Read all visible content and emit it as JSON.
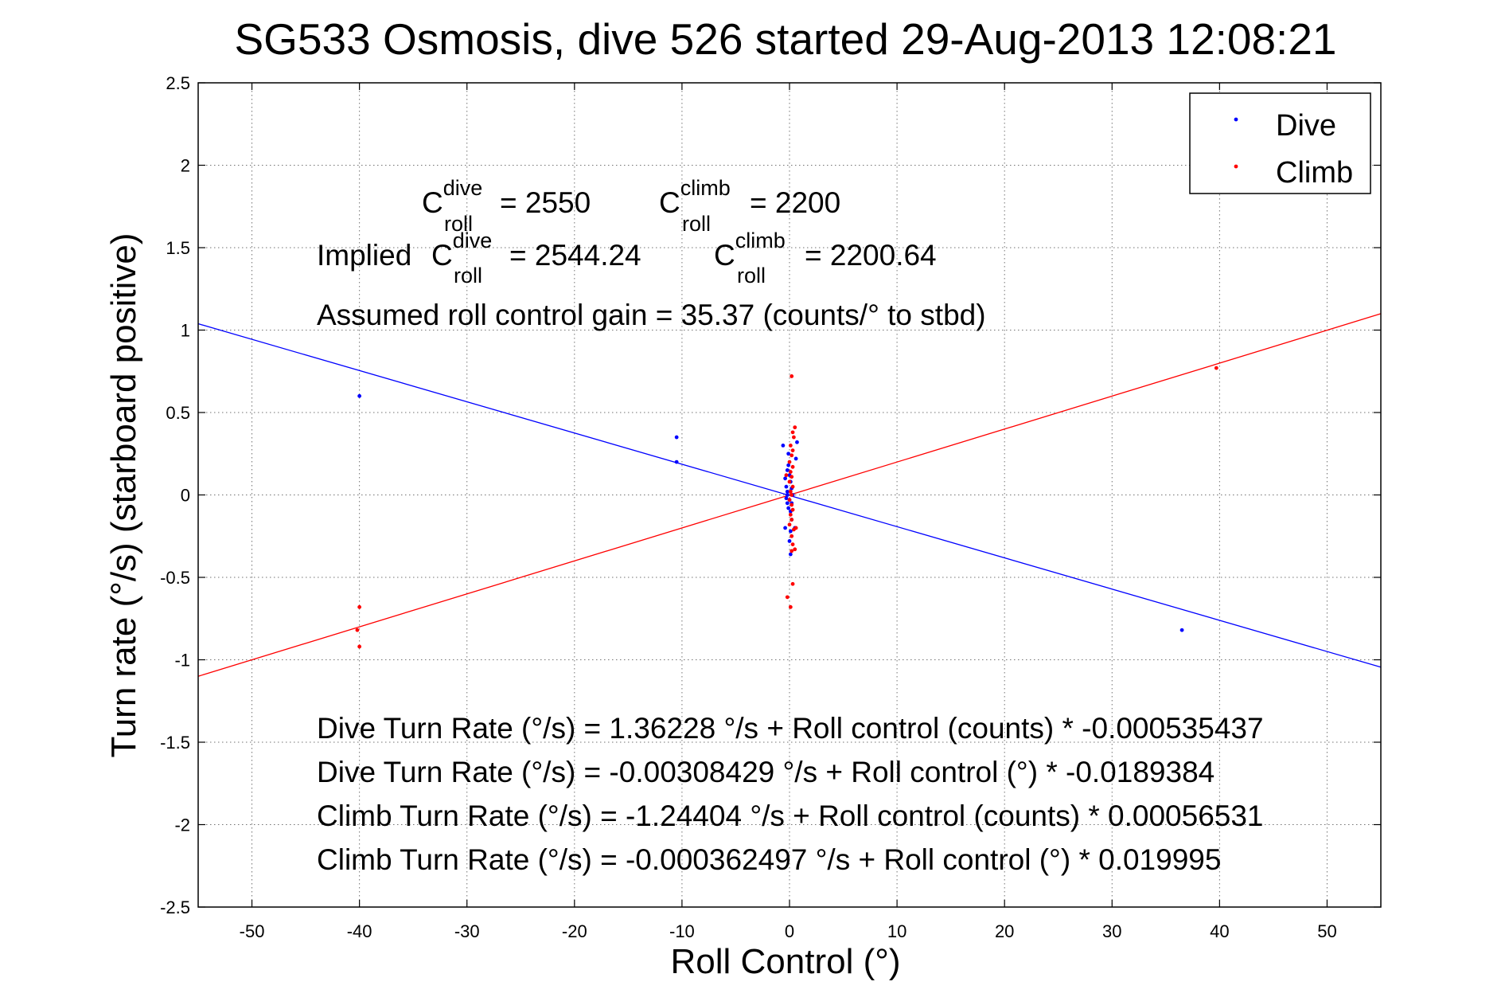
{
  "chart_data": {
    "type": "scatter",
    "title": "SG533 Osmosis, dive 526 started 29-Aug-2013 12:08:21",
    "xlabel": "Roll Control (°)",
    "ylabel": "Turn rate (°/s)  (starboard positive)",
    "xlim": [
      -55,
      55
    ],
    "ylim": [
      -2.5,
      2.5
    ],
    "xticks": [
      "-50",
      "-40",
      "-30",
      "-20",
      "-10",
      "0",
      "10",
      "20",
      "30",
      "40",
      "50"
    ],
    "yticks": [
      "2.5",
      "2",
      "1.5",
      "1",
      "0.5",
      "0",
      "-0.5",
      "-1",
      "-1.5",
      "-2",
      "-2.5"
    ],
    "grid": true,
    "legend": {
      "placement": "top-right",
      "entries": [
        "Dive",
        "Climb"
      ]
    },
    "colors": {
      "dive": "#0000ff",
      "climb": "#ff0000"
    },
    "annotations": {
      "c_roll_dive": {
        "base": "C",
        "sup": "dive",
        "sub": "roll",
        "value": "= 2550"
      },
      "c_roll_climb": {
        "base": "C",
        "sup": "climb",
        "sub": "roll",
        "value": "= 2200"
      },
      "implied_prefix": "Implied",
      "implied_dive": {
        "base": "C",
        "sup": "dive",
        "sub": "roll",
        "value": "= 2544.24"
      },
      "implied_climb": {
        "base": "C",
        "sup": "climb",
        "sub": "roll",
        "value": "= 2200.64"
      },
      "gain": "Assumed roll control gain = 35.37 (counts/° to stbd)",
      "eq_dive_counts": "Dive Turn Rate (°/s) = 1.36228 °/s + Roll control (counts) * -0.000535437",
      "eq_dive_deg": "Dive Turn Rate (°/s) = -0.00308429 °/s + Roll control (°) * -0.0189384",
      "eq_climb_counts": "Climb Turn Rate (°/s) = -1.24404 °/s + Roll control (counts) * 0.00056531",
      "eq_climb_deg": "Climb Turn Rate (°/s) = -0.000362497 °/s + Roll control (°) * 0.019995"
    },
    "series": [
      {
        "name": "Dive",
        "points": [
          [
            -40,
            0.6
          ],
          [
            -10.5,
            0.35
          ],
          [
            -10.5,
            0.2
          ],
          [
            36.5,
            -0.82
          ],
          [
            -0.6,
            0.3
          ],
          [
            -0.4,
            0.1
          ],
          [
            -0.3,
            0.05
          ],
          [
            -0.2,
            0.02
          ],
          [
            -0.2,
            0.0
          ],
          [
            -0.3,
            -0.02
          ],
          [
            -0.2,
            -0.05
          ],
          [
            -0.1,
            -0.08
          ],
          [
            -0.2,
            0.15
          ],
          [
            -0.1,
            0.18
          ],
          [
            0.0,
            0.12
          ],
          [
            0.1,
            0.08
          ],
          [
            0.2,
            0.04
          ],
          [
            0.0,
            -0.03
          ],
          [
            0.1,
            -0.1
          ],
          [
            0.2,
            -0.15
          ],
          [
            -0.4,
            -0.2
          ],
          [
            0.1,
            -0.22
          ],
          [
            0.5,
            -0.2
          ],
          [
            0.7,
            0.32
          ],
          [
            0.6,
            0.22
          ],
          [
            0.0,
            -0.28
          ],
          [
            0.1,
            -0.36
          ],
          [
            0.3,
            0.0
          ],
          [
            -0.1,
            0.25
          ],
          [
            0.2,
            -0.05
          ]
        ],
        "fit": {
          "intercept": -0.00308429,
          "slope": -0.0189384
        }
      },
      {
        "name": "Climb",
        "points": [
          [
            -40,
            -0.68
          ],
          [
            -40.2,
            -0.82
          ],
          [
            -40,
            -0.92
          ],
          [
            39.7,
            0.77
          ],
          [
            0.2,
            0.72
          ],
          [
            0.5,
            0.41
          ],
          [
            0.3,
            0.38
          ],
          [
            0.4,
            0.35
          ],
          [
            0.1,
            0.3
          ],
          [
            0.3,
            0.27
          ],
          [
            0.2,
            0.24
          ],
          [
            0.0,
            0.2
          ],
          [
            0.3,
            0.17
          ],
          [
            0.1,
            0.14
          ],
          [
            0.2,
            0.11
          ],
          [
            0.0,
            0.08
          ],
          [
            0.3,
            0.05
          ],
          [
            0.1,
            0.02
          ],
          [
            0.2,
            0.0
          ],
          [
            0.0,
            -0.03
          ],
          [
            0.2,
            -0.06
          ],
          [
            0.3,
            -0.09
          ],
          [
            0.1,
            -0.12
          ],
          [
            0.2,
            -0.15
          ],
          [
            0.0,
            -0.18
          ],
          [
            0.4,
            -0.21
          ],
          [
            0.2,
            -0.25
          ],
          [
            0.3,
            -0.3
          ],
          [
            0.2,
            -0.34
          ],
          [
            0.5,
            -0.33
          ],
          [
            0.3,
            -0.54
          ],
          [
            -0.2,
            -0.62
          ],
          [
            0.1,
            -0.68
          ],
          [
            0.6,
            -0.2
          ],
          [
            -0.3,
            0.12
          ]
        ],
        "fit": {
          "intercept": -0.000362497,
          "slope": 0.019995
        }
      }
    ]
  }
}
